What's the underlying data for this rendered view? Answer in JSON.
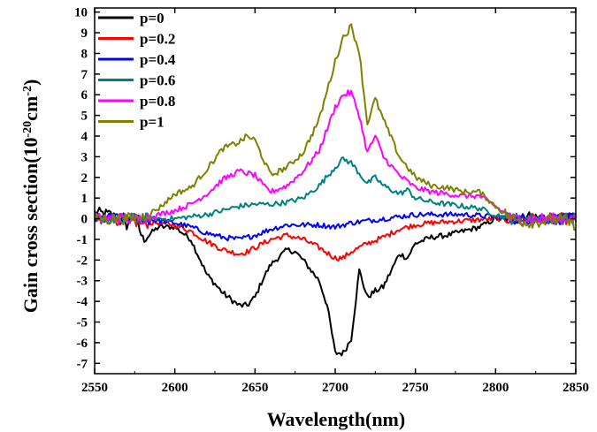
{
  "chart_data": {
    "type": "line",
    "title": "",
    "xlabel": "Wavelength(nm)",
    "ylabel_main": "Gain cross section(10",
    "ylabel_sup1": "-20",
    "ylabel_mid": "cm",
    "ylabel_sup2": "-2",
    "ylabel_end": ")",
    "xlim": [
      2550,
      2850
    ],
    "ylim": [
      -7.5,
      10.2
    ],
    "xticks": [
      2550,
      2600,
      2650,
      2700,
      2750,
      2800,
      2850
    ],
    "yticks": [
      -7,
      -6,
      -5,
      -4,
      -3,
      -2,
      -1,
      0,
      1,
      2,
      3,
      4,
      5,
      6,
      7,
      8,
      9,
      10
    ],
    "grid": false,
    "legend_position": "top-left",
    "series": [
      {
        "name": "p=0",
        "color": "#000000",
        "x": [
          2550,
          2560,
          2570,
          2575,
          2580,
          2590,
          2600,
          2610,
          2620,
          2630,
          2640,
          2645,
          2650,
          2655,
          2660,
          2670,
          2675,
          2680,
          2690,
          2695,
          2700,
          2705,
          2710,
          2715,
          2720,
          2725,
          2730,
          2740,
          2745,
          2750,
          2760,
          2770,
          2780,
          2790,
          2800,
          2810,
          2820,
          2830,
          2840,
          2850
        ],
        "y": [
          0.3,
          0.2,
          -0.3,
          0.2,
          -1.0,
          -0.4,
          -0.4,
          -1.0,
          -2.7,
          -3.6,
          -4.2,
          -4.2,
          -3.8,
          -2.9,
          -2.2,
          -1.5,
          -1.6,
          -2.0,
          -3.0,
          -4.2,
          -6.5,
          -6.5,
          -5.8,
          -2.5,
          -3.8,
          -3.5,
          -3.3,
          -1.7,
          -1.9,
          -1.2,
          -0.9,
          -0.8,
          -0.6,
          -0.4,
          0.0,
          0.0,
          0.1,
          0.0,
          0.0,
          0.0
        ]
      },
      {
        "name": "p=0.2",
        "color": "#ff0000",
        "x": [
          2550,
          2560,
          2570,
          2580,
          2590,
          2600,
          2610,
          2620,
          2630,
          2640,
          2645,
          2650,
          2660,
          2670,
          2680,
          2690,
          2700,
          2705,
          2710,
          2720,
          2730,
          2740,
          2750,
          2760,
          2780,
          2800,
          2810,
          2820,
          2850
        ],
        "y": [
          0.0,
          0.0,
          -0.1,
          -0.2,
          -0.2,
          -0.3,
          -0.6,
          -1.1,
          -1.5,
          -1.7,
          -1.6,
          -1.4,
          -1.0,
          -0.8,
          -1.0,
          -1.4,
          -1.9,
          -1.9,
          -1.6,
          -1.2,
          -0.9,
          -0.5,
          -0.3,
          -0.2,
          -0.1,
          0.0,
          0.0,
          0.0,
          0.0
        ]
      },
      {
        "name": "p=0.4",
        "color": "#0000ff",
        "x": [
          2550,
          2580,
          2600,
          2610,
          2620,
          2630,
          2640,
          2650,
          2660,
          2670,
          2680,
          2690,
          2700,
          2710,
          2720,
          2730,
          2740,
          2750,
          2760,
          2780,
          2800,
          2810,
          2850
        ],
        "y": [
          0.0,
          0.0,
          -0.2,
          -0.4,
          -0.7,
          -0.9,
          -1.0,
          -0.8,
          -0.5,
          -0.3,
          -0.3,
          -0.3,
          -0.4,
          -0.2,
          -0.1,
          0.0,
          0.1,
          0.2,
          0.2,
          0.2,
          0.1,
          0.0,
          0.0
        ]
      },
      {
        "name": "p=0.6",
        "color": "#008080",
        "x": [
          2550,
          2580,
          2600,
          2620,
          2630,
          2640,
          2650,
          2660,
          2670,
          2680,
          2690,
          2700,
          2705,
          2710,
          2720,
          2725,
          2730,
          2740,
          2745,
          2750,
          2760,
          2780,
          2790,
          2800,
          2810,
          2850
        ],
        "y": [
          0.0,
          0.0,
          0.0,
          0.2,
          0.4,
          0.6,
          0.7,
          0.7,
          0.8,
          1.0,
          1.6,
          2.5,
          2.9,
          2.7,
          1.7,
          2.0,
          1.6,
          1.2,
          1.4,
          1.0,
          0.8,
          0.6,
          0.5,
          0.2,
          0.0,
          0.0
        ]
      },
      {
        "name": "p=0.8",
        "color": "#ff00ff",
        "x": [
          2550,
          2580,
          2590,
          2600,
          2610,
          2620,
          2630,
          2640,
          2650,
          2655,
          2660,
          2670,
          2680,
          2690,
          2700,
          2705,
          2710,
          2715,
          2720,
          2725,
          2730,
          2740,
          2750,
          2760,
          2770,
          2780,
          2790,
          2800,
          2810,
          2850
        ],
        "y": [
          0.0,
          0.0,
          0.2,
          0.4,
          0.7,
          1.2,
          1.9,
          2.3,
          2.1,
          1.6,
          1.3,
          1.6,
          2.3,
          3.3,
          5.4,
          6.0,
          6.1,
          5.0,
          3.2,
          4.0,
          3.0,
          2.1,
          1.5,
          1.3,
          1.2,
          1.1,
          1.1,
          0.6,
          0.0,
          0.0
        ]
      },
      {
        "name": "p=1",
        "color": "#808000",
        "x": [
          2550,
          2570,
          2580,
          2590,
          2600,
          2610,
          2620,
          2630,
          2640,
          2645,
          2650,
          2655,
          2660,
          2670,
          2680,
          2690,
          2700,
          2705,
          2710,
          2715,
          2720,
          2725,
          2730,
          2740,
          2750,
          2760,
          2770,
          2780,
          2790,
          2800,
          2810,
          2820,
          2830,
          2840,
          2850
        ],
        "y": [
          0.0,
          0.0,
          0.1,
          0.5,
          1.2,
          1.5,
          2.4,
          3.4,
          3.7,
          4.0,
          3.8,
          2.9,
          2.1,
          2.5,
          3.2,
          4.8,
          7.6,
          8.8,
          9.3,
          8.1,
          4.6,
          5.8,
          4.8,
          3.0,
          2.0,
          1.6,
          1.5,
          1.3,
          1.3,
          0.6,
          0.0,
          -0.2,
          -0.1,
          0.0,
          -0.3
        ]
      }
    ]
  }
}
